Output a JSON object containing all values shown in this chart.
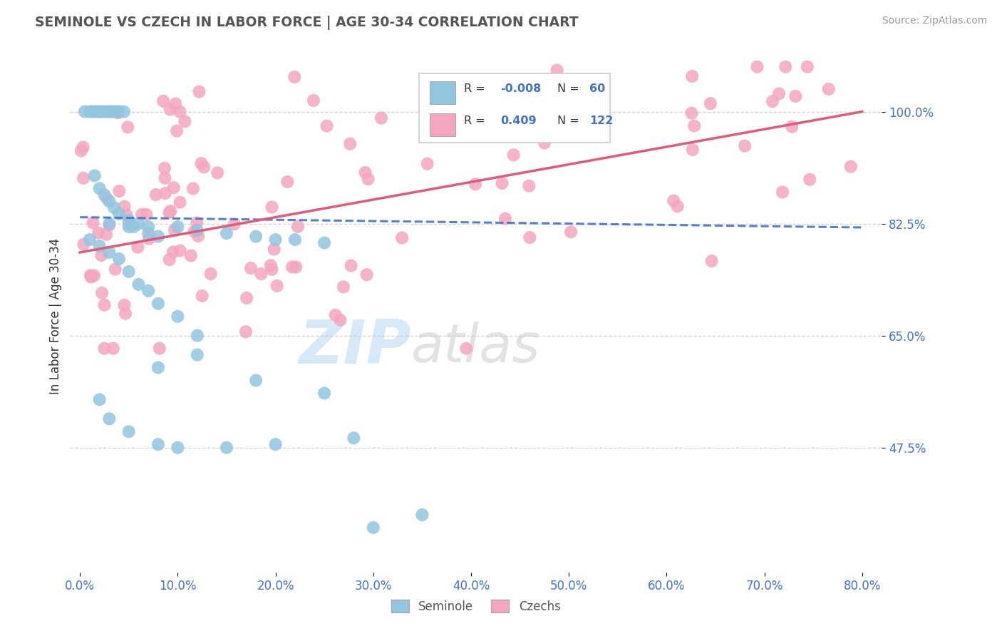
{
  "title": "SEMINOLE VS CZECH IN LABOR FORCE | AGE 30-34 CORRELATION CHART",
  "source": "Source: ZipAtlas.com",
  "ylabel": "In Labor Force | Age 30-34",
  "x_tick_labels": [
    "0.0%",
    "10.0%",
    "20.0%",
    "30.0%",
    "40.0%",
    "50.0%",
    "60.0%",
    "70.0%",
    "80.0%"
  ],
  "x_ticks": [
    0.0,
    10.0,
    20.0,
    30.0,
    40.0,
    50.0,
    60.0,
    70.0,
    80.0
  ],
  "y_tick_labels": [
    "47.5%",
    "65.0%",
    "82.5%",
    "100.0%"
  ],
  "y_ticks": [
    47.5,
    65.0,
    82.5,
    100.0
  ],
  "xlim": [
    -1.0,
    82.0
  ],
  "ylim": [
    28.0,
    108.0
  ],
  "seminole_color": "#92c5de",
  "czech_color": "#f4a6c0",
  "seminole_line_color": "#4472c4",
  "czech_line_color": "#e05a7a",
  "watermark_zip": "#a8c8e8",
  "watermark_atlas": "#b8b8b8",
  "legend_seminole": "Seminole",
  "legend_czech": "Czechs"
}
